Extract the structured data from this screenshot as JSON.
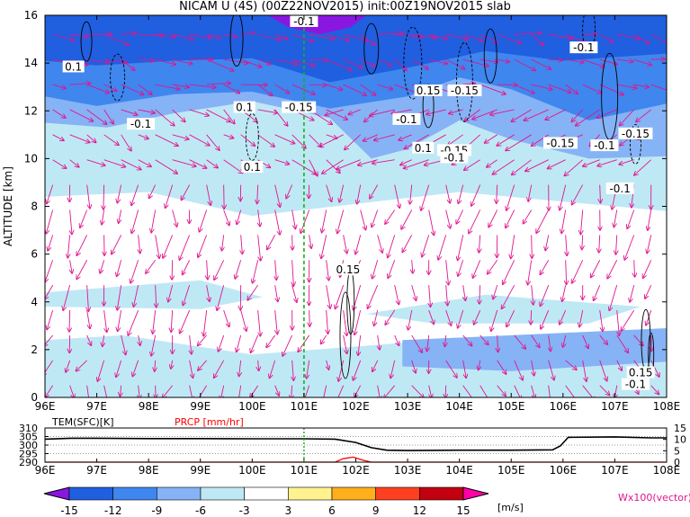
{
  "title": "NICAM U (4S) (00Z22NOV2015) init:00Z19NOV2015 slab",
  "colors": {
    "zonal_wind_palette": [
      "#8a17e0",
      "#1f5fe0",
      "#3f86ef",
      "#86b3f5",
      "#bfe8f5",
      "#ffffff",
      "#fff28f",
      "#ffae1c",
      "#ff4020",
      "#c2000f",
      "#ff00a8"
    ],
    "vector": "#e0158e",
    "contour": "#000000",
    "marker_line": "#19b119",
    "precip_line": "#ff0000"
  },
  "chart_data": [
    {
      "type": "heatmap",
      "description_of_mark": "longitude-altitude cross section of zonal wind U with contours and wind vectors",
      "xlabel": "",
      "ylabel": "ALTITUDE [km]",
      "xlim": [
        96,
        108
      ],
      "ylim": [
        0,
        16
      ],
      "x_tick_labels": [
        "96E",
        "97E",
        "98E",
        "99E",
        "100E",
        "101E",
        "102E",
        "103E",
        "104E",
        "105E",
        "106E",
        "107E",
        "108E"
      ],
      "y_tick_labels": [
        "0",
        "2",
        "4",
        "6",
        "8",
        "10",
        "12",
        "14",
        "16"
      ],
      "marker_longitude": 101,
      "contour_labels": [
        {
          "text": "-0.1",
          "lon": 101.0,
          "alt": 15.7
        },
        {
          "text": "0.1",
          "lon": 96.55,
          "alt": 13.8
        },
        {
          "text": "-0.1",
          "lon": 97.85,
          "alt": 11.4
        },
        {
          "text": "0.1",
          "lon": 99.85,
          "alt": 12.1
        },
        {
          "text": "-0.15",
          "lon": 100.9,
          "alt": 12.1
        },
        {
          "text": "0.1",
          "lon": 100.0,
          "alt": 9.6
        },
        {
          "text": "-0.1",
          "lon": 106.4,
          "alt": 14.6
        },
        {
          "text": "0.15",
          "lon": 103.4,
          "alt": 12.8
        },
        {
          "text": "-0.1",
          "lon": 102.98,
          "alt": 11.6
        },
        {
          "text": "-0.15",
          "lon": 104.1,
          "alt": 12.8
        },
        {
          "text": "0.1",
          "lon": 103.3,
          "alt": 10.4
        },
        {
          "text": "-0.15",
          "lon": 103.9,
          "alt": 10.3
        },
        {
          "text": "-0.1",
          "lon": 103.9,
          "alt": 10.0
        },
        {
          "text": "-0.15",
          "lon": 105.95,
          "alt": 10.6
        },
        {
          "text": "-0.1",
          "lon": 106.8,
          "alt": 10.5
        },
        {
          "text": "-0.15",
          "lon": 107.4,
          "alt": 11.0
        },
        {
          "text": "-0.1",
          "lon": 107.1,
          "alt": 8.7
        },
        {
          "text": "0.15",
          "lon": 101.85,
          "alt": 5.3
        },
        {
          "text": "0.15",
          "lon": 107.5,
          "alt": 1.0
        },
        {
          "text": "-0.1",
          "lon": 107.4,
          "alt": 0.5
        }
      ]
    },
    {
      "type": "line",
      "title": "",
      "left_label": "TEM(SFC)[K]",
      "right_label": "PRCP [mm/hr]",
      "xlim": [
        96,
        108
      ],
      "y_left_lim": [
        290,
        310
      ],
      "y_right_lim": [
        0,
        15
      ],
      "y_left_tick_labels": [
        "290",
        "295",
        "300",
        "305",
        "310"
      ],
      "y_right_tick_labels": [
        "0",
        "5",
        "10",
        "15"
      ],
      "x_tick_labels": [
        "96E",
        "97E",
        "98E",
        "99E",
        "100E",
        "101E",
        "102E",
        "103E",
        "104E",
        "105E",
        "106E",
        "107E",
        "108E"
      ],
      "series": [
        {
          "name": "TEM(SFC)[K]",
          "color": "#000000",
          "x": [
            96.0,
            96.5,
            97.0,
            98.0,
            99.0,
            100.0,
            101.0,
            101.6,
            102.0,
            102.3,
            102.6,
            103.0,
            104.0,
            105.0,
            105.8,
            105.95,
            106.1,
            107.0,
            107.7,
            108.0
          ],
          "y": [
            303.5,
            304.0,
            304.0,
            303.8,
            303.8,
            303.7,
            303.7,
            303.5,
            301.5,
            298.5,
            297.0,
            296.8,
            297.0,
            297.0,
            297.2,
            299.5,
            304.5,
            304.8,
            304.2,
            304.2
          ]
        },
        {
          "name": "PRCP [mm/hr]",
          "color": "#ff0000",
          "x": [
            96.0,
            101.6,
            101.75,
            101.95,
            102.15,
            102.3,
            108.0
          ],
          "y": [
            0,
            0,
            1.5,
            2.2,
            0.8,
            0,
            0
          ]
        }
      ]
    },
    {
      "type": "colorbar",
      "tick_labels": [
        "-15",
        "-12",
        "-9",
        "-6",
        "-3",
        "3",
        "6",
        "9",
        "12",
        "15"
      ],
      "unit": "[m/s]",
      "vector_note": "Wx100(vector)"
    }
  ]
}
